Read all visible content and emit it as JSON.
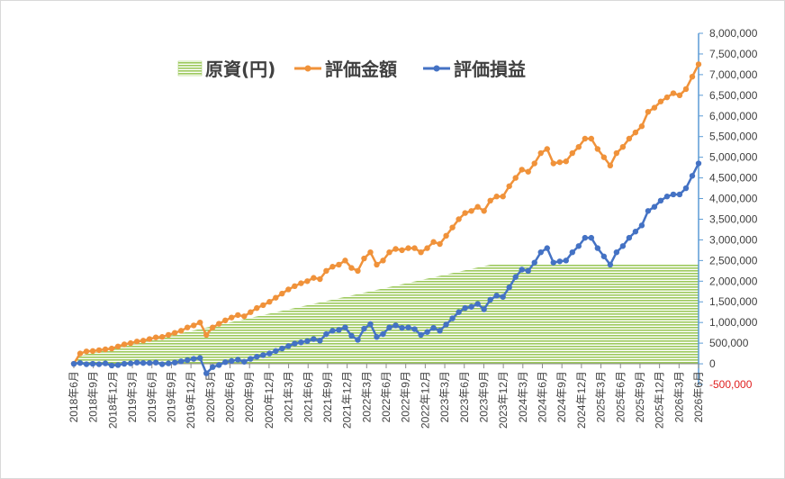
{
  "chart_data": {
    "type": "line",
    "legend": {
      "placement": "top-left",
      "items": [
        {
          "label": "原資(円)",
          "kind": "area",
          "color": "#a6cf6b"
        },
        {
          "label": "評価金額",
          "kind": "line",
          "color": "#f0923a"
        },
        {
          "label": "評価損益",
          "kind": "line",
          "color": "#4472c4"
        }
      ]
    },
    "y_axis": {
      "position": "right",
      "ylim": [
        -500000,
        8000000
      ],
      "ticks": [
        {
          "value": 8000000,
          "label": "8,000,000"
        },
        {
          "value": 7500000,
          "label": "7,500,000"
        },
        {
          "value": 7000000,
          "label": "7,000,000"
        },
        {
          "value": 6500000,
          "label": "6,500,000"
        },
        {
          "value": 6000000,
          "label": "6,000,000"
        },
        {
          "value": 5500000,
          "label": "5,500,000"
        },
        {
          "value": 5000000,
          "label": "5,000,000"
        },
        {
          "value": 4500000,
          "label": "4,500,000"
        },
        {
          "value": 4000000,
          "label": "4,000,000"
        },
        {
          "value": 3500000,
          "label": "3,500,000"
        },
        {
          "value": 3000000,
          "label": "3,000,000"
        },
        {
          "value": 2500000,
          "label": "2,500,000"
        },
        {
          "value": 2000000,
          "label": "2,000,000"
        },
        {
          "value": 1500000,
          "label": "1,500,000"
        },
        {
          "value": 1000000,
          "label": "1,000,000"
        },
        {
          "value": 500000,
          "label": "500,000"
        },
        {
          "value": 0,
          "label": "0"
        },
        {
          "value": -500000,
          "label": "-500,000",
          "negative": true
        }
      ]
    },
    "x_axis": {
      "start": "2018-06",
      "end": "2026-06",
      "ticks": [
        "2018年6月",
        "2018年9月",
        "2018年12月",
        "2019年3月",
        "2019年6月",
        "2019年9月",
        "2019年12月",
        "2020年3月",
        "2020年6月",
        "2020年9月",
        "2020年12月",
        "2021年3月",
        "2021年6月",
        "2021年9月",
        "2021年12月",
        "2022年3月",
        "2022年6月",
        "2022年9月",
        "2022年12月",
        "2023年3月",
        "2023年6月",
        "2023年9月",
        "2023年12月",
        "2024年3月",
        "2024年6月",
        "2024年9月",
        "2024年12月",
        "2025年3月",
        "2025年6月",
        "2025年9月",
        "2025年12月",
        "2026年3月",
        "2026年6月"
      ]
    },
    "principal_area": {
      "name": "原資(円)",
      "points": [
        [
          "2018-06",
          0
        ],
        [
          "2018-07",
          200000
        ],
        [
          "2023-12",
          2400000
        ],
        [
          "2026-06",
          2400000
        ]
      ]
    },
    "series": [
      {
        "name": "評価金額",
        "color": "#f0923a",
        "points": [
          [
            "2018-06",
            0
          ],
          [
            "2018-07",
            250000
          ],
          [
            "2018-08",
            300000
          ],
          [
            "2018-09",
            310000
          ],
          [
            "2018-10",
            330000
          ],
          [
            "2018-11",
            350000
          ],
          [
            "2018-12",
            370000
          ],
          [
            "2019-01",
            420000
          ],
          [
            "2019-02",
            470000
          ],
          [
            "2019-03",
            500000
          ],
          [
            "2019-04",
            540000
          ],
          [
            "2019-05",
            560000
          ],
          [
            "2019-06",
            600000
          ],
          [
            "2019-07",
            640000
          ],
          [
            "2019-08",
            650000
          ],
          [
            "2019-09",
            700000
          ],
          [
            "2019-10",
            750000
          ],
          [
            "2019-11",
            800000
          ],
          [
            "2019-12",
            880000
          ],
          [
            "2020-01",
            930000
          ],
          [
            "2020-02",
            1000000
          ],
          [
            "2020-03",
            700000
          ],
          [
            "2020-04",
            880000
          ],
          [
            "2020-05",
            970000
          ],
          [
            "2020-06",
            1050000
          ],
          [
            "2020-07",
            1120000
          ],
          [
            "2020-08",
            1180000
          ],
          [
            "2020-09",
            1150000
          ],
          [
            "2020-10",
            1250000
          ],
          [
            "2020-11",
            1350000
          ],
          [
            "2020-12",
            1420000
          ],
          [
            "2021-01",
            1500000
          ],
          [
            "2021-02",
            1600000
          ],
          [
            "2021-03",
            1700000
          ],
          [
            "2021-04",
            1800000
          ],
          [
            "2021-05",
            1880000
          ],
          [
            "2021-06",
            1950000
          ],
          [
            "2021-07",
            2000000
          ],
          [
            "2021-08",
            2080000
          ],
          [
            "2021-09",
            2050000
          ],
          [
            "2021-10",
            2250000
          ],
          [
            "2021-11",
            2350000
          ],
          [
            "2021-12",
            2400000
          ],
          [
            "2022-01",
            2500000
          ],
          [
            "2022-02",
            2320000
          ],
          [
            "2022-03",
            2250000
          ],
          [
            "2022-04",
            2550000
          ],
          [
            "2022-05",
            2700000
          ],
          [
            "2022-06",
            2400000
          ],
          [
            "2022-07",
            2500000
          ],
          [
            "2022-08",
            2700000
          ],
          [
            "2022-09",
            2780000
          ],
          [
            "2022-10",
            2750000
          ],
          [
            "2022-11",
            2800000
          ],
          [
            "2022-12",
            2800000
          ],
          [
            "2023-01",
            2700000
          ],
          [
            "2023-02",
            2800000
          ],
          [
            "2023-03",
            2950000
          ],
          [
            "2023-04",
            2900000
          ],
          [
            "2023-05",
            3100000
          ],
          [
            "2023-06",
            3300000
          ],
          [
            "2023-07",
            3500000
          ],
          [
            "2023-08",
            3650000
          ],
          [
            "2023-09",
            3700000
          ],
          [
            "2023-10",
            3800000
          ],
          [
            "2023-11",
            3700000
          ],
          [
            "2023-12",
            3950000
          ],
          [
            "2024-01",
            4050000
          ],
          [
            "2024-02",
            4050000
          ],
          [
            "2024-03",
            4300000
          ],
          [
            "2024-04",
            4500000
          ],
          [
            "2024-05",
            4700000
          ],
          [
            "2024-06",
            4650000
          ],
          [
            "2024-07",
            4850000
          ],
          [
            "2024-08",
            5100000
          ],
          [
            "2024-09",
            5200000
          ],
          [
            "2024-10",
            4850000
          ],
          [
            "2024-11",
            4880000
          ],
          [
            "2024-12",
            4900000
          ],
          [
            "2025-01",
            5100000
          ],
          [
            "2025-02",
            5250000
          ],
          [
            "2025-03",
            5450000
          ],
          [
            "2025-04",
            5450000
          ],
          [
            "2025-05",
            5200000
          ],
          [
            "2025-06",
            5000000
          ],
          [
            "2025-07",
            4800000
          ],
          [
            "2025-08",
            5100000
          ],
          [
            "2025-09",
            5250000
          ],
          [
            "2025-10",
            5450000
          ],
          [
            "2025-11",
            5600000
          ],
          [
            "2025-12",
            5750000
          ],
          [
            "2026-01",
            6100000
          ],
          [
            "2026-02",
            6200000
          ],
          [
            "2026-03",
            6350000
          ],
          [
            "2026-04",
            6450000
          ],
          [
            "2026-05",
            6550000
          ],
          [
            "2026-06",
            6500000
          ],
          [
            "2026-07",
            6650000
          ],
          [
            "2026-08",
            6950000
          ],
          [
            "2026-09",
            7250000
          ]
        ]
      },
      {
        "name": "評価損益",
        "color": "#4472c4",
        "points": [
          [
            "2018-06",
            0
          ],
          [
            "2018-07",
            20000
          ],
          [
            "2018-08",
            -10000
          ],
          [
            "2018-09",
            0
          ],
          [
            "2018-10",
            -10000
          ],
          [
            "2018-11",
            10000
          ],
          [
            "2018-12",
            -40000
          ],
          [
            "2019-01",
            -30000
          ],
          [
            "2019-02",
            0
          ],
          [
            "2019-03",
            10000
          ],
          [
            "2019-04",
            30000
          ],
          [
            "2019-05",
            20000
          ],
          [
            "2019-06",
            20000
          ],
          [
            "2019-07",
            30000
          ],
          [
            "2019-08",
            -10000
          ],
          [
            "2019-09",
            10000
          ],
          [
            "2019-10",
            30000
          ],
          [
            "2019-11",
            60000
          ],
          [
            "2019-12",
            90000
          ],
          [
            "2020-01",
            120000
          ],
          [
            "2020-02",
            140000
          ],
          [
            "2020-03",
            -230000
          ],
          [
            "2020-04",
            -80000
          ],
          [
            "2020-05",
            -30000
          ],
          [
            "2020-06",
            40000
          ],
          [
            "2020-07",
            70000
          ],
          [
            "2020-08",
            100000
          ],
          [
            "2020-09",
            50000
          ],
          [
            "2020-10",
            120000
          ],
          [
            "2020-11",
            170000
          ],
          [
            "2020-12",
            210000
          ],
          [
            "2021-01",
            250000
          ],
          [
            "2021-02",
            310000
          ],
          [
            "2021-03",
            370000
          ],
          [
            "2021-04",
            430000
          ],
          [
            "2021-05",
            490000
          ],
          [
            "2021-06",
            520000
          ],
          [
            "2021-07",
            550000
          ],
          [
            "2021-08",
            600000
          ],
          [
            "2021-09",
            560000
          ],
          [
            "2021-10",
            720000
          ],
          [
            "2021-11",
            800000
          ],
          [
            "2021-12",
            820000
          ],
          [
            "2022-01",
            880000
          ],
          [
            "2022-02",
            680000
          ],
          [
            "2022-03",
            580000
          ],
          [
            "2022-04",
            850000
          ],
          [
            "2022-05",
            960000
          ],
          [
            "2022-06",
            650000
          ],
          [
            "2022-07",
            720000
          ],
          [
            "2022-08",
            880000
          ],
          [
            "2022-09",
            930000
          ],
          [
            "2022-10",
            870000
          ],
          [
            "2022-11",
            880000
          ],
          [
            "2022-12",
            840000
          ],
          [
            "2023-01",
            700000
          ],
          [
            "2023-02",
            770000
          ],
          [
            "2023-03",
            870000
          ],
          [
            "2023-04",
            800000
          ],
          [
            "2023-05",
            950000
          ],
          [
            "2023-06",
            1100000
          ],
          [
            "2023-07",
            1250000
          ],
          [
            "2023-08",
            1350000
          ],
          [
            "2023-09",
            1380000
          ],
          [
            "2023-10",
            1450000
          ],
          [
            "2023-11",
            1320000
          ],
          [
            "2023-12",
            1550000
          ],
          [
            "2024-01",
            1650000
          ],
          [
            "2024-02",
            1620000
          ],
          [
            "2024-03",
            1850000
          ],
          [
            "2024-04",
            2100000
          ],
          [
            "2024-05",
            2280000
          ],
          [
            "2024-06",
            2250000
          ],
          [
            "2024-07",
            2450000
          ],
          [
            "2024-08",
            2700000
          ],
          [
            "2024-09",
            2800000
          ],
          [
            "2024-10",
            2450000
          ],
          [
            "2024-11",
            2480000
          ],
          [
            "2024-12",
            2500000
          ],
          [
            "2025-01",
            2700000
          ],
          [
            "2025-02",
            2850000
          ],
          [
            "2025-03",
            3050000
          ],
          [
            "2025-04",
            3050000
          ],
          [
            "2025-05",
            2800000
          ],
          [
            "2025-06",
            2600000
          ],
          [
            "2025-07",
            2400000
          ],
          [
            "2025-08",
            2700000
          ],
          [
            "2025-09",
            2850000
          ],
          [
            "2025-10",
            3050000
          ],
          [
            "2025-11",
            3200000
          ],
          [
            "2025-12",
            3350000
          ],
          [
            "2026-01",
            3700000
          ],
          [
            "2026-02",
            3800000
          ],
          [
            "2026-03",
            3950000
          ],
          [
            "2026-04",
            4050000
          ],
          [
            "2026-05",
            4100000
          ],
          [
            "2026-06",
            4100000
          ],
          [
            "2026-07",
            4250000
          ],
          [
            "2026-08",
            4550000
          ],
          [
            "2026-09",
            4850000
          ]
        ]
      }
    ]
  }
}
